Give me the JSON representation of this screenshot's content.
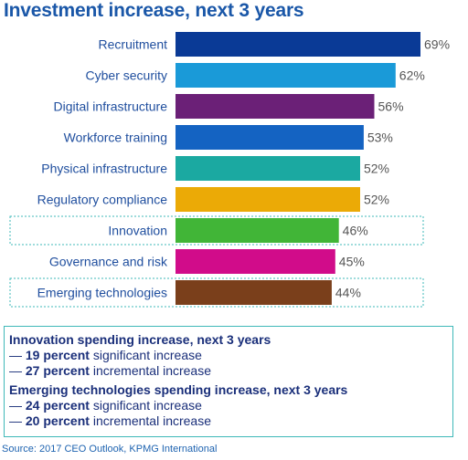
{
  "title": "Investment increase, next 3 years",
  "chart_data": {
    "type": "bar",
    "orientation": "horizontal",
    "categories": [
      "Recruitment",
      "Cyber security",
      "Digital infrastructure",
      "Workforce training",
      "Physical infrastructure",
      "Regulatory compliance",
      "Innovation",
      "Governance and risk",
      "Emerging technologies"
    ],
    "values": [
      69,
      62,
      56,
      53,
      52,
      52,
      46,
      45,
      44
    ],
    "value_labels": [
      "69%",
      "62%",
      "56%",
      "53%",
      "52%",
      "52%",
      "46%",
      "45%",
      "44%"
    ],
    "unit": "%",
    "colors": [
      "#0a3a96",
      "#1a9ad8",
      "#6b2077",
      "#1463c2",
      "#1ba9a1",
      "#ebaa06",
      "#41b537",
      "#d10c8a",
      "#7a3f1b"
    ],
    "highlighted": [
      "Innovation",
      "Emerging technologies"
    ],
    "highlight_border_color": "#3fb9b9",
    "xlim": [
      0,
      69
    ],
    "grid": false,
    "legend": "none"
  },
  "info": {
    "innovation": {
      "heading": "Innovation spending increase, next 3 years",
      "lines": [
        {
          "prefix": "— ",
          "bold": "19 percent",
          "text": " significant increase"
        },
        {
          "prefix": "— ",
          "bold": "27 percent",
          "text": " incremental increase"
        }
      ]
    },
    "emerging": {
      "heading": "Emerging technologies spending increase, next 3 years",
      "lines": [
        {
          "prefix": "— ",
          "bold": "24 percent",
          "text": " significant increase"
        },
        {
          "prefix": "— ",
          "bold": "20 percent",
          "text": " incremental increase"
        }
      ]
    }
  },
  "source": "Source: 2017 CEO Outlook, KPMG International",
  "colors": {
    "title": "#1a57a8",
    "text": "#1a2f7a",
    "label": "#1f4e9e",
    "value": "#555555",
    "source": "#1e63b0"
  }
}
